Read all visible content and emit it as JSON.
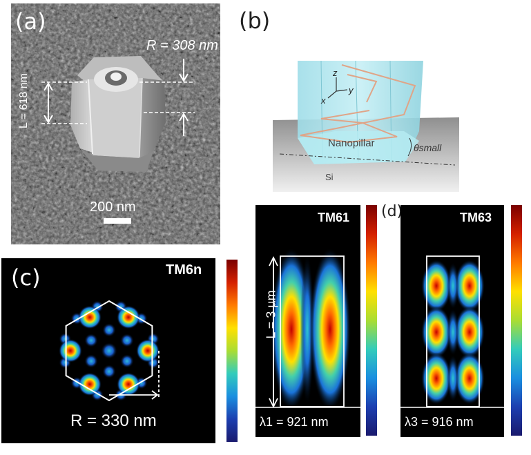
{
  "panel_a": {
    "label": "(a)",
    "radius_label": "R = 308 nm",
    "length_label": "L = 618 nm",
    "scale_label": "200 nm"
  },
  "panel_b": {
    "label": "(b)",
    "axis_z": "z",
    "axis_x": "x",
    "axis_y": "y",
    "nanopillar_label": "Nanopillar",
    "theta_label": "θsmall",
    "substrate_label": "Si"
  },
  "panel_c": {
    "label": "(c)",
    "mode_label": "TM6n",
    "radius_label": "R = 330 nm"
  },
  "panel_d": {
    "label": "(d)",
    "mode_left": "TM61",
    "mode_right": "TM63",
    "length_label": "L = 3 µm",
    "lambda_left": "λ1 = 921 nm",
    "lambda_right": "λ3 = 916 nm"
  },
  "colors": {
    "colormap": [
      "#7a0000",
      "#d42000",
      "#ff7a00",
      "#ffe000",
      "#aadd33",
      "#33ccbb",
      "#1a8fe0",
      "#1c3fb0",
      "#1a1a6e"
    ],
    "sem_bg": "#5c5c5c",
    "pillar_cyan": "#a5e3ec"
  }
}
